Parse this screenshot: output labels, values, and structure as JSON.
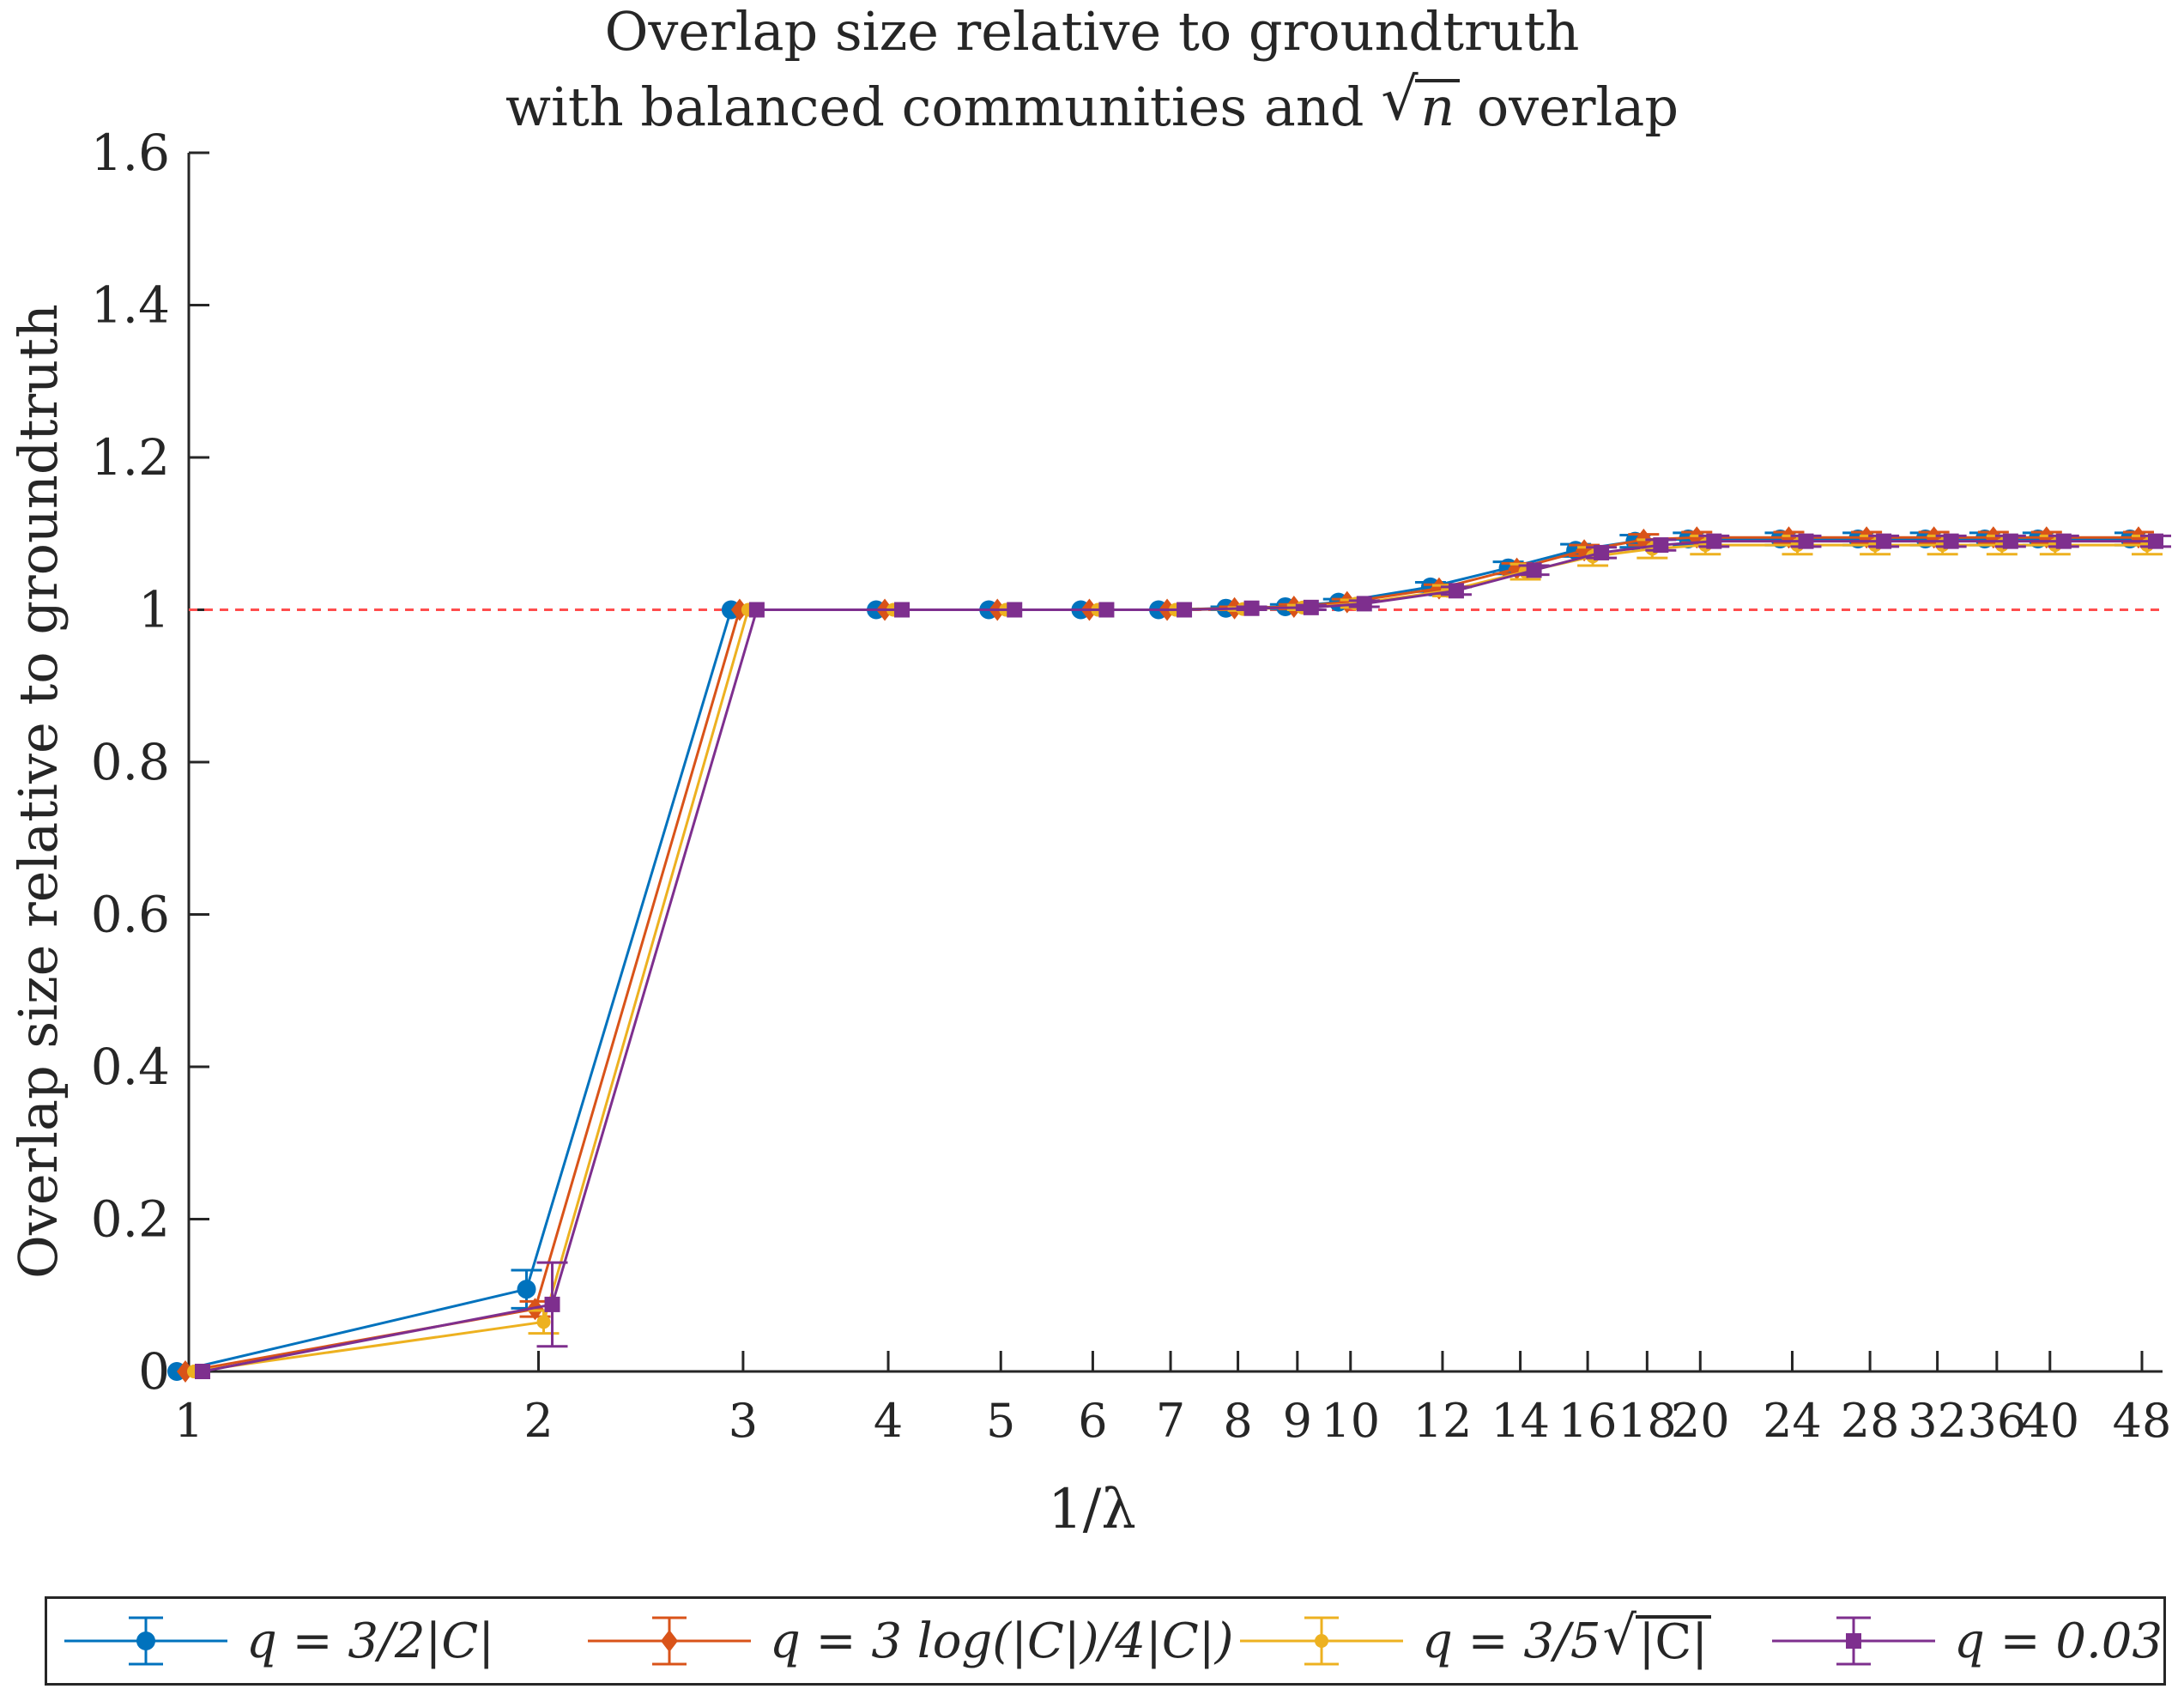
{
  "chart_data": {
    "type": "line",
    "title": [
      "Overlap size relative to groundtruth",
      "with balanced communities and",
      "n",
      "overlap"
    ],
    "xlabel": "1/λ",
    "ylabel": "Overlap size relative to groundtruth",
    "x_scale": "log",
    "x_ticks": [
      "1",
      "2",
      "3",
      "4",
      "5",
      "6",
      "7",
      "8",
      "9",
      "10",
      "12",
      "14",
      "16",
      "18",
      "20",
      "24",
      "28",
      "32",
      "36",
      "40",
      "48"
    ],
    "y_ticks": [
      "0",
      "0.2",
      "0.4",
      "0.6",
      "0.8",
      "1",
      "1.2",
      "1.4",
      "1.6"
    ],
    "ylim": [
      0,
      1.6
    ],
    "reference_line": {
      "y": 1,
      "style": "dashed",
      "color": "#ff4d4d"
    },
    "legend_placement": "bottom-outside",
    "x": [
      1,
      2,
      3,
      4,
      5,
      6,
      7,
      8,
      9,
      10,
      12,
      14,
      16,
      18,
      20,
      24,
      28,
      32,
      36,
      40,
      48
    ],
    "series": [
      {
        "name": "q = 3/2|C|",
        "color": "#0072bd",
        "marker": "circle",
        "values": [
          0,
          0.108,
          1.0,
          1.0,
          1.0,
          1.0,
          1.0,
          1.002,
          1.004,
          1.01,
          1.03,
          1.055,
          1.078,
          1.09,
          1.093,
          1.093,
          1.093,
          1.093,
          1.093,
          1.093,
          1.093
        ],
        "err": [
          0,
          0.025,
          0,
          0,
          0,
          0,
          0,
          0.002,
          0.003,
          0.004,
          0.006,
          0.008,
          0.008,
          0.008,
          0.008,
          0.008,
          0.008,
          0.008,
          0.008,
          0.008,
          0.008
        ]
      },
      {
        "name": "q = 3 log(|C|)/4|C|)",
        "color": "#d95319",
        "marker": "diamond",
        "values": [
          0,
          0.082,
          1.0,
          1.0,
          1.0,
          1.0,
          1.0,
          1.002,
          1.004,
          1.01,
          1.028,
          1.054,
          1.078,
          1.092,
          1.095,
          1.095,
          1.095,
          1.095,
          1.095,
          1.095,
          1.095
        ],
        "err": [
          0,
          0.01,
          0,
          0,
          0,
          0,
          0,
          0.002,
          0.003,
          0.004,
          0.005,
          0.007,
          0.007,
          0.007,
          0.007,
          0.007,
          0.007,
          0.007,
          0.007,
          0.007,
          0.007
        ]
      },
      {
        "name": "q = 3/5",
        "name_root": "|C|",
        "color": "#edb120",
        "marker": "dot",
        "values": [
          0,
          0.065,
          1.0,
          1.0,
          1.0,
          1.0,
          1.0,
          1.001,
          1.003,
          1.008,
          1.025,
          1.05,
          1.07,
          1.08,
          1.085,
          1.085,
          1.085,
          1.085,
          1.085,
          1.085,
          1.085
        ],
        "err": [
          0,
          0.015,
          0,
          0,
          0,
          0,
          0,
          0.002,
          0.003,
          0.005,
          0.007,
          0.01,
          0.012,
          0.012,
          0.012,
          0.012,
          0.012,
          0.012,
          0.012,
          0.012,
          0.012
        ]
      },
      {
        "name": "q = 0.03",
        "color": "#7e2f8e",
        "marker": "square",
        "values": [
          0,
          0.088,
          1.0,
          1.0,
          1.0,
          1.0,
          1.0,
          1.002,
          1.003,
          1.008,
          1.025,
          1.052,
          1.075,
          1.085,
          1.09,
          1.09,
          1.09,
          1.09,
          1.09,
          1.09,
          1.09
        ],
        "err": [
          0,
          0.055,
          0,
          0,
          0,
          0,
          0,
          0.002,
          0.003,
          0.004,
          0.005,
          0.006,
          0.007,
          0.007,
          0.007,
          0.007,
          0.007,
          0.007,
          0.007,
          0.007,
          0.007
        ]
      }
    ]
  }
}
